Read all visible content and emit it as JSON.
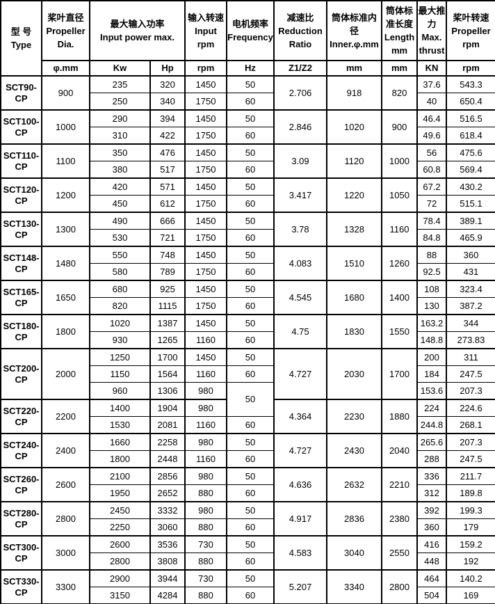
{
  "colors": {
    "text": "#000000",
    "border": "#000000",
    "background": "#ffffff"
  },
  "table": {
    "header": {
      "model": {
        "cn": "型 号",
        "en": "Type"
      },
      "dia": {
        "cn": "桨叶直径",
        "en": "Propeller Dia.",
        "unit": "φ.mm"
      },
      "power": {
        "cn": "最大输入功率",
        "en": "Input power max.",
        "unit_kw": "Kw",
        "unit_hp": "Hp"
      },
      "input_rpm": {
        "cn": "输入转速",
        "en": "Input rpm",
        "unit": "rpm"
      },
      "freq": {
        "cn": "电机频率",
        "en": "Frequency",
        "unit": "Hz"
      },
      "ratio": {
        "cn": "减速比",
        "en": "Reduction Ratio",
        "unit": "Z1/Z2"
      },
      "inner": {
        "cn": "筒体标准内径",
        "en": "Inner.φ.mm",
        "unit": "mm"
      },
      "length": {
        "cn": "筒体标准长度",
        "en": "Length mm",
        "unit": "mm"
      },
      "thrust": {
        "cn": "最大推力",
        "en": "Max. thrust",
        "unit": "KN"
      },
      "prop_rpm": {
        "cn": "桨叶转速",
        "en": "Propeller rpm",
        "unit": "rpm"
      }
    },
    "groups": [
      {
        "model": "SCT90-CP",
        "dia": "900",
        "ratio": "2.706",
        "inner": "918",
        "length": "820",
        "rows": [
          {
            "kw": "235",
            "hp": "320",
            "rpm": "1450",
            "hz": "50",
            "kn": "37.6",
            "prop": "543.3"
          },
          {
            "kw": "250",
            "hp": "340",
            "rpm": "1750",
            "hz": "60",
            "kn": "40",
            "prop": "650.4"
          }
        ]
      },
      {
        "model": "SCT100-CP",
        "dia": "1000",
        "ratio": "2.846",
        "inner": "1020",
        "length": "900",
        "rows": [
          {
            "kw": "290",
            "hp": "394",
            "rpm": "1450",
            "hz": "50",
            "kn": "46.4",
            "prop": "516.5"
          },
          {
            "kw": "310",
            "hp": "422",
            "rpm": "1750",
            "hz": "60",
            "kn": "49.6",
            "prop": "618.4"
          }
        ]
      },
      {
        "model": "SCT110-CP",
        "dia": "1100",
        "ratio": "3.09",
        "inner": "1120",
        "length": "1000",
        "rows": [
          {
            "kw": "350",
            "hp": "476",
            "rpm": "1450",
            "hz": "50",
            "kn": "56",
            "prop": "475.6"
          },
          {
            "kw": "380",
            "hp": "517",
            "rpm": "1750",
            "hz": "60",
            "kn": "60.8",
            "prop": "569.4"
          }
        ]
      },
      {
        "model": "SCT120-CP",
        "dia": "1200",
        "ratio": "3.417",
        "inner": "1220",
        "length": "1050",
        "rows": [
          {
            "kw": "420",
            "hp": "571",
            "rpm": "1450",
            "hz": "50",
            "kn": "67.2",
            "prop": "430.2"
          },
          {
            "kw": "450",
            "hp": "612",
            "rpm": "1750",
            "hz": "60",
            "kn": "72",
            "prop": "515.1"
          }
        ]
      },
      {
        "model": "SCT130-CP",
        "dia": "1300",
        "ratio": "3.78",
        "inner": "1328",
        "length": "1160",
        "rows": [
          {
            "kw": "490",
            "hp": "666",
            "rpm": "1450",
            "hz": "50",
            "kn": "78.4",
            "prop": "389.1"
          },
          {
            "kw": "530",
            "hp": "721",
            "rpm": "1750",
            "hz": "60",
            "kn": "84.8",
            "prop": "465.9"
          }
        ]
      },
      {
        "model": "SCT148-CP",
        "dia": "1480",
        "ratio": "4.083",
        "inner": "1510",
        "length": "1260",
        "rows": [
          {
            "kw": "550",
            "hp": "748",
            "rpm": "1450",
            "hz": "50",
            "kn": "88",
            "prop": "360"
          },
          {
            "kw": "580",
            "hp": "789",
            "rpm": "1750",
            "hz": "60",
            "kn": "92.5",
            "prop": "431"
          }
        ]
      },
      {
        "model": "SCT165-CP",
        "dia": "1650",
        "ratio": "4.545",
        "inner": "1680",
        "length": "1400",
        "rows": [
          {
            "kw": "680",
            "hp": "925",
            "rpm": "1450",
            "hz": "50",
            "kn": "108",
            "prop": "323.4"
          },
          {
            "kw": "820",
            "hp": "1115",
            "rpm": "1750",
            "hz": "60",
            "kn": "130",
            "prop": "387.2"
          }
        ]
      },
      {
        "model": "SCT180-CP",
        "dia": "1800",
        "ratio": "4.75",
        "inner": "1830",
        "length": "1550",
        "rows": [
          {
            "kw": "1020",
            "hp": "1387",
            "rpm": "1450",
            "hz": "50",
            "kn": "163.2",
            "prop": "344"
          },
          {
            "kw": "930",
            "hp": "1265",
            "rpm": "1160",
            "hz": "60",
            "kn": "148.8",
            "prop": "273.83"
          }
        ]
      },
      {
        "model": "SCT200-CP",
        "dia": "2000",
        "ratio": "4.727",
        "inner": "2030",
        "length": "1700",
        "rows": [
          {
            "kw": "1250",
            "hp": "1700",
            "rpm": "1450",
            "hz": "50",
            "kn": "200",
            "prop": "311"
          },
          {
            "kw": "1150",
            "hp": "1564",
            "rpm": "1160",
            "hz": "60",
            "kn": "184",
            "prop": "247.5"
          },
          {
            "kw": "960",
            "hp": "1306",
            "rpm": "980",
            "hz": "50",
            "hz_rowspan": 2,
            "kn": "153.6",
            "prop": "207.3"
          }
        ]
      },
      {
        "model": "SCT220-CP",
        "dia": "2200",
        "ratio": "4.364",
        "inner": "2230",
        "length": "1880",
        "rows": [
          {
            "kw": "1400",
            "hp": "1904",
            "rpm": "980",
            "hz": null,
            "kn": "224",
            "prop": "224.6"
          },
          {
            "kw": "1530",
            "hp": "2081",
            "rpm": "1160",
            "hz": "60",
            "kn": "244.8",
            "prop": "268.1"
          }
        ]
      },
      {
        "model": "SCT240-CP",
        "dia": "2400",
        "ratio": "4.727",
        "inner": "2430",
        "length": "2040",
        "rows": [
          {
            "kw": "1660",
            "hp": "2258",
            "rpm": "980",
            "hz": "50",
            "kn": "265.6",
            "prop": "207.3"
          },
          {
            "kw": "1800",
            "hp": "2448",
            "rpm": "1160",
            "hz": "60",
            "kn": "288",
            "prop": "247.5"
          }
        ]
      },
      {
        "model": "SCT260-CP",
        "dia": "2600",
        "ratio": "4.636",
        "inner": "2632",
        "length": "2210",
        "rows": [
          {
            "kw": "2100",
            "hp": "2856",
            "rpm": "980",
            "hz": "50",
            "kn": "336",
            "prop": "211.7"
          },
          {
            "kw": "1950",
            "hp": "2652",
            "rpm": "880",
            "hz": "60",
            "kn": "312",
            "prop": "189.8"
          }
        ]
      },
      {
        "model": "SCT280-CP",
        "dia": "2800",
        "ratio": "4.917",
        "inner": "2836",
        "length": "2380",
        "rows": [
          {
            "kw": "2450",
            "hp": "3332",
            "rpm": "980",
            "hz": "50",
            "kn": "392",
            "prop": "199.3"
          },
          {
            "kw": "2250",
            "hp": "3060",
            "rpm": "880",
            "hz": "60",
            "kn": "360",
            "prop": "179"
          }
        ]
      },
      {
        "model": "SCT300-CP",
        "dia": "3000",
        "ratio": "4.583",
        "inner": "3040",
        "length": "2550",
        "rows": [
          {
            "kw": "2600",
            "hp": "3536",
            "rpm": "730",
            "hz": "50",
            "kn": "416",
            "prop": "159.2"
          },
          {
            "kw": "2800",
            "hp": "3808",
            "rpm": "880",
            "hz": "60",
            "kn": "448",
            "prop": "192"
          }
        ]
      },
      {
        "model": "SCT330-CP",
        "dia": "3300",
        "ratio": "5.207",
        "inner": "3340",
        "length": "2800",
        "rows": [
          {
            "kw": "2900",
            "hp": "3944",
            "rpm": "730",
            "hz": "50",
            "kn": "464",
            "prop": "140.2"
          },
          {
            "kw": "3150",
            "hp": "4284",
            "rpm": "880",
            "hz": "60",
            "kn": "504",
            "prop": "169"
          }
        ]
      }
    ]
  }
}
